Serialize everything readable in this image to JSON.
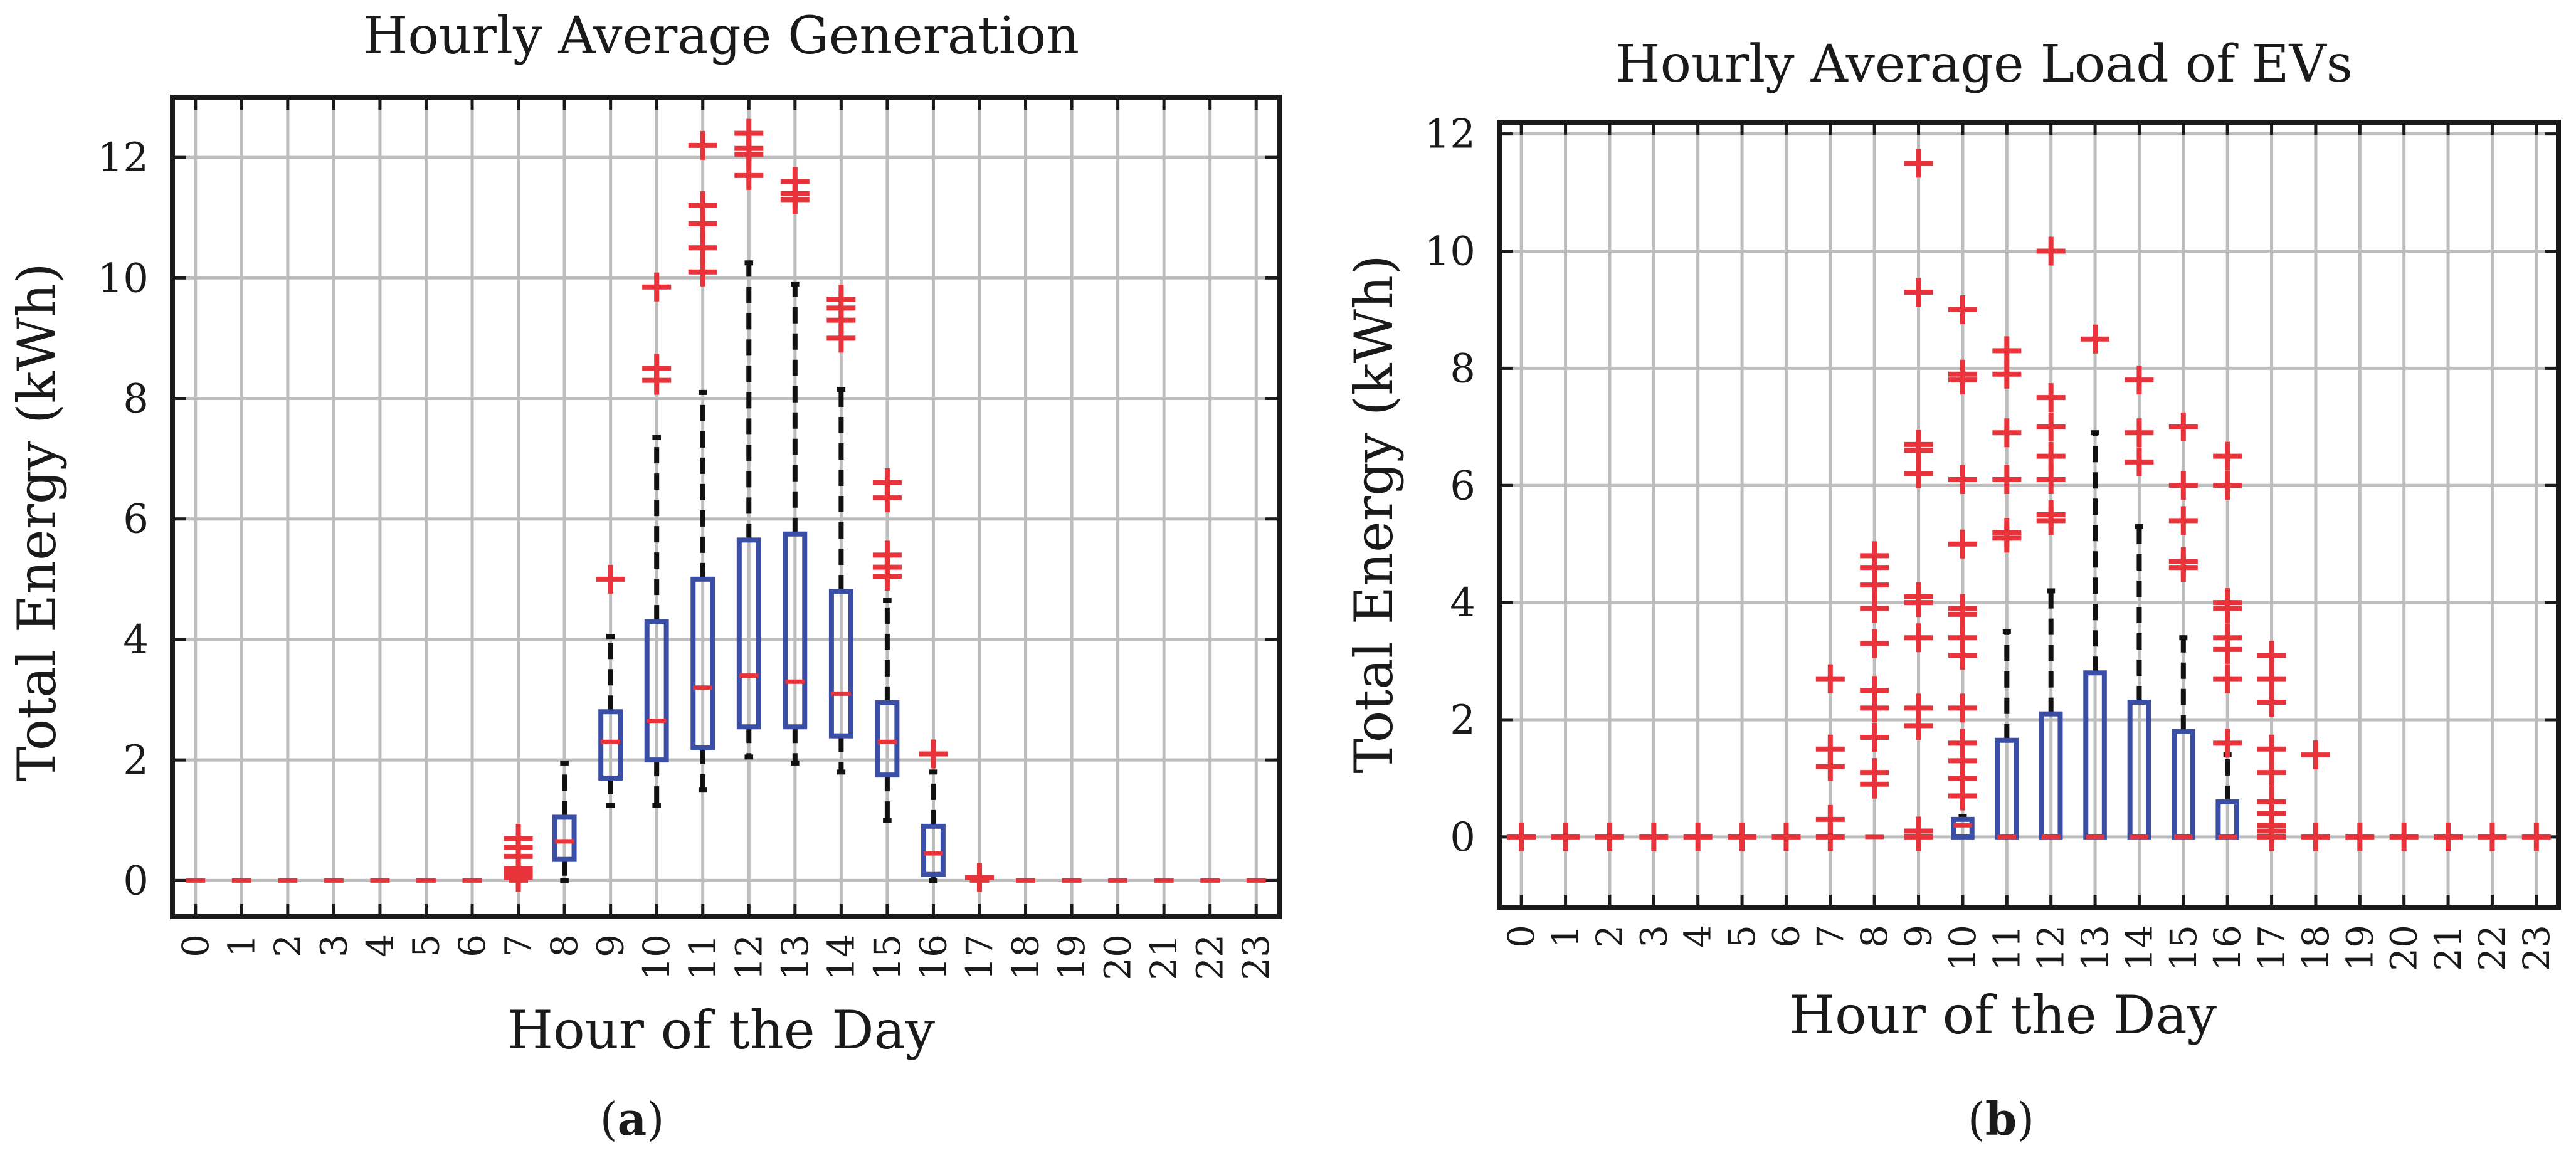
{
  "chart_data": [
    {
      "type": "boxplot",
      "id": "a",
      "panel_label": "a",
      "title": "Hourly Average Generation",
      "xlabel": "Hour of the Day",
      "ylabel": "Total Energy (kWh)",
      "ylim": [
        -0.6,
        13
      ],
      "yticks": [
        0,
        2,
        4,
        6,
        8,
        10,
        12
      ],
      "grid": true,
      "categories": [
        "0",
        "1",
        "2",
        "3",
        "4",
        "5",
        "6",
        "7",
        "8",
        "9",
        "10",
        "11",
        "12",
        "13",
        "14",
        "15",
        "16",
        "17",
        "18",
        "19",
        "20",
        "21",
        "22",
        "23"
      ],
      "boxes": [
        {
          "hour": 0,
          "zero": true
        },
        {
          "hour": 1,
          "zero": true
        },
        {
          "hour": 2,
          "zero": true
        },
        {
          "hour": 3,
          "zero": true
        },
        {
          "hour": 4,
          "zero": true
        },
        {
          "hour": 5,
          "zero": true
        },
        {
          "hour": 6,
          "zero": true
        },
        {
          "hour": 7,
          "q1": 0,
          "median": 0,
          "q3": 0,
          "wlo": 0,
          "whi": 0,
          "outliers": [
            0.05,
            0.12,
            0.2,
            0.4,
            0.55,
            0.7
          ]
        },
        {
          "hour": 8,
          "q1": 0.35,
          "median": 0.65,
          "q3": 1.05,
          "wlo": 0,
          "whi": 1.95,
          "outliers": []
        },
        {
          "hour": 9,
          "q1": 1.7,
          "median": 2.3,
          "q3": 2.8,
          "wlo": 1.25,
          "whi": 4.05,
          "outliers": [
            5.0
          ]
        },
        {
          "hour": 10,
          "q1": 2.0,
          "median": 2.65,
          "q3": 4.3,
          "wlo": 1.25,
          "whi": 7.35,
          "outliers": [
            8.3,
            8.5,
            9.85
          ]
        },
        {
          "hour": 11,
          "q1": 2.2,
          "median": 3.2,
          "q3": 5.0,
          "wlo": 1.5,
          "whi": 8.1,
          "outliers": [
            10.1,
            10.5,
            10.9,
            11.2,
            12.2
          ]
        },
        {
          "hour": 12,
          "q1": 2.55,
          "median": 3.4,
          "q3": 5.65,
          "wlo": 2.05,
          "whi": 10.25,
          "outliers": [
            11.7,
            12.05,
            12.15,
            12.4
          ]
        },
        {
          "hour": 13,
          "q1": 2.55,
          "median": 3.3,
          "q3": 5.75,
          "wlo": 1.95,
          "whi": 9.9,
          "outliers": [
            11.3,
            11.4,
            11.6
          ]
        },
        {
          "hour": 14,
          "q1": 2.4,
          "median": 3.1,
          "q3": 4.8,
          "wlo": 1.8,
          "whi": 8.15,
          "outliers": [
            9.0,
            9.3,
            9.5,
            9.65
          ]
        },
        {
          "hour": 15,
          "q1": 1.75,
          "median": 2.3,
          "q3": 2.95,
          "wlo": 1.0,
          "whi": 4.65,
          "outliers": [
            5.05,
            5.2,
            5.4,
            6.35,
            6.6
          ]
        },
        {
          "hour": 16,
          "q1": 0.1,
          "median": 0.45,
          "q3": 0.9,
          "wlo": 0,
          "whi": 1.8,
          "outliers": [
            2.1
          ]
        },
        {
          "hour": 17,
          "q1": 0,
          "median": 0,
          "q3": 0,
          "wlo": 0,
          "whi": 0,
          "outliers": [
            0.05
          ]
        },
        {
          "hour": 18,
          "zero": true
        },
        {
          "hour": 19,
          "zero": true
        },
        {
          "hour": 20,
          "zero": true
        },
        {
          "hour": 21,
          "zero": true
        },
        {
          "hour": 22,
          "zero": true
        },
        {
          "hour": 23,
          "zero": true
        }
      ]
    },
    {
      "type": "boxplot",
      "id": "b",
      "panel_label": "b",
      "title": "Hourly Average Load of EVs",
      "xlabel": "Hour of the Day",
      "ylabel": "Total Energy (kWh)",
      "ylim": [
        -1.2,
        12.2
      ],
      "yticks": [
        0,
        2,
        4,
        6,
        8,
        10,
        12
      ],
      "grid": true,
      "categories": [
        "0",
        "1",
        "2",
        "3",
        "4",
        "5",
        "6",
        "7",
        "8",
        "9",
        "10",
        "11",
        "12",
        "13",
        "14",
        "15",
        "16",
        "17",
        "18",
        "19",
        "20",
        "21",
        "22",
        "23"
      ],
      "boxes": [
        {
          "hour": 0,
          "q1": 0,
          "median": 0,
          "q3": 0,
          "outliers": [
            0
          ]
        },
        {
          "hour": 1,
          "q1": 0,
          "median": 0,
          "q3": 0,
          "outliers": [
            0
          ]
        },
        {
          "hour": 2,
          "q1": 0,
          "median": 0,
          "q3": 0,
          "outliers": [
            0
          ]
        },
        {
          "hour": 3,
          "q1": 0,
          "median": 0,
          "q3": 0,
          "outliers": [
            0
          ]
        },
        {
          "hour": 4,
          "q1": 0,
          "median": 0,
          "q3": 0,
          "outliers": [
            0
          ]
        },
        {
          "hour": 5,
          "q1": 0,
          "median": 0,
          "q3": 0,
          "outliers": [
            0
          ]
        },
        {
          "hour": 6,
          "q1": 0,
          "median": 0,
          "q3": 0,
          "outliers": [
            0
          ]
        },
        {
          "hour": 7,
          "q1": 0,
          "median": 0,
          "q3": 0,
          "outliers": [
            0,
            0.3,
            1.2,
            1.5,
            2.7
          ]
        },
        {
          "hour": 8,
          "q1": 0,
          "median": 0,
          "q3": 0,
          "outliers": [
            0.9,
            1.1,
            1.7,
            2.2,
            2.5,
            3.3,
            3.9,
            4.3,
            4.6,
            4.8
          ]
        },
        {
          "hour": 9,
          "q1": 0,
          "median": 0,
          "q3": 0,
          "outliers": [
            0,
            0.1,
            1.9,
            2.2,
            3.4,
            4.0,
            4.1,
            6.2,
            6.6,
            6.7,
            9.3,
            11.5
          ]
        },
        {
          "hour": 10,
          "q1": 0,
          "median": 0.2,
          "q3": 0.3,
          "wlo": 0,
          "whi": 0.35,
          "outliers": [
            0.7,
            1.0,
            1.3,
            1.6,
            2.2,
            3.1,
            3.4,
            3.8,
            3.9,
            5.0,
            6.1,
            7.8,
            7.9,
            9.0
          ]
        },
        {
          "hour": 11,
          "q1": 0,
          "median": 0,
          "q3": 1.65,
          "wlo": 0,
          "whi": 3.5,
          "outliers": [
            5.1,
            5.2,
            6.1,
            6.9,
            7.9,
            8.3
          ]
        },
        {
          "hour": 12,
          "q1": 0,
          "median": 0,
          "q3": 2.1,
          "wlo": 0,
          "whi": 4.2,
          "outliers": [
            5.4,
            5.5,
            6.1,
            6.5,
            7.0,
            7.5,
            10.0
          ]
        },
        {
          "hour": 13,
          "q1": 0,
          "median": 0,
          "q3": 2.8,
          "wlo": 0,
          "whi": 6.9,
          "outliers": [
            8.5
          ]
        },
        {
          "hour": 14,
          "q1": 0,
          "median": 0,
          "q3": 2.3,
          "wlo": 0,
          "whi": 5.3,
          "outliers": [
            6.4,
            6.9,
            7.8
          ]
        },
        {
          "hour": 15,
          "q1": 0,
          "median": 0,
          "q3": 1.8,
          "wlo": 0,
          "whi": 3.4,
          "outliers": [
            4.6,
            4.7,
            5.4,
            6.0,
            7.0
          ]
        },
        {
          "hour": 16,
          "q1": 0,
          "median": 0,
          "q3": 0.6,
          "wlo": 0,
          "whi": 1.4,
          "outliers": [
            1.6,
            2.7,
            3.2,
            3.4,
            3.9,
            4.0,
            6.0,
            6.5
          ]
        },
        {
          "hour": 17,
          "q1": 0,
          "median": 0,
          "q3": 0,
          "outliers": [
            0,
            0.1,
            0.2,
            0.4,
            0.6,
            1.1,
            1.5,
            2.3,
            2.7,
            3.1
          ]
        },
        {
          "hour": 18,
          "q1": 0,
          "median": 0,
          "q3": 0,
          "outliers": [
            0,
            1.4
          ]
        },
        {
          "hour": 19,
          "q1": 0,
          "median": 0,
          "q3": 0,
          "outliers": [
            0
          ]
        },
        {
          "hour": 20,
          "q1": 0,
          "median": 0,
          "q3": 0,
          "outliers": [
            0
          ]
        },
        {
          "hour": 21,
          "q1": 0,
          "median": 0,
          "q3": 0,
          "outliers": [
            0
          ]
        },
        {
          "hour": 22,
          "q1": 0,
          "median": 0,
          "q3": 0,
          "outliers": [
            0
          ]
        },
        {
          "hour": 23,
          "q1": 0,
          "median": 0,
          "q3": 0,
          "outliers": [
            0
          ]
        }
      ]
    }
  ],
  "colors": {
    "box": "#3a4ea5",
    "median": "#e8333a",
    "outlier": "#e8333a",
    "whisker": "#111111",
    "grid": "#bdbdbd",
    "axis": "#1a1a1a"
  }
}
